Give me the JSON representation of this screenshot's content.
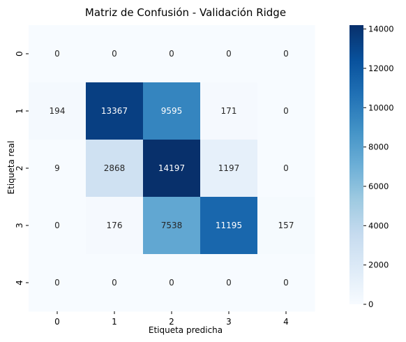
{
  "chart_data": {
    "type": "heatmap",
    "title": "Matriz de Confusión - Validación Ridge",
    "xlabel": "Etiqueta predicha",
    "ylabel": "Etiqueta real",
    "x_categories": [
      "0",
      "1",
      "2",
      "3",
      "4"
    ],
    "y_categories": [
      "0",
      "1",
      "2",
      "3",
      "4"
    ],
    "values": [
      [
        0,
        0,
        0,
        0,
        0
      ],
      [
        194,
        13367,
        9595,
        171,
        0
      ],
      [
        9,
        2868,
        14197,
        1197,
        0
      ],
      [
        0,
        176,
        7538,
        11195,
        157
      ],
      [
        0,
        0,
        0,
        0,
        0
      ]
    ],
    "colorscale": "Blues",
    "vmin": 0,
    "vmax": 14197,
    "colorbar_ticks": [
      0,
      2000,
      4000,
      6000,
      8000,
      10000,
      12000,
      14000
    ]
  }
}
